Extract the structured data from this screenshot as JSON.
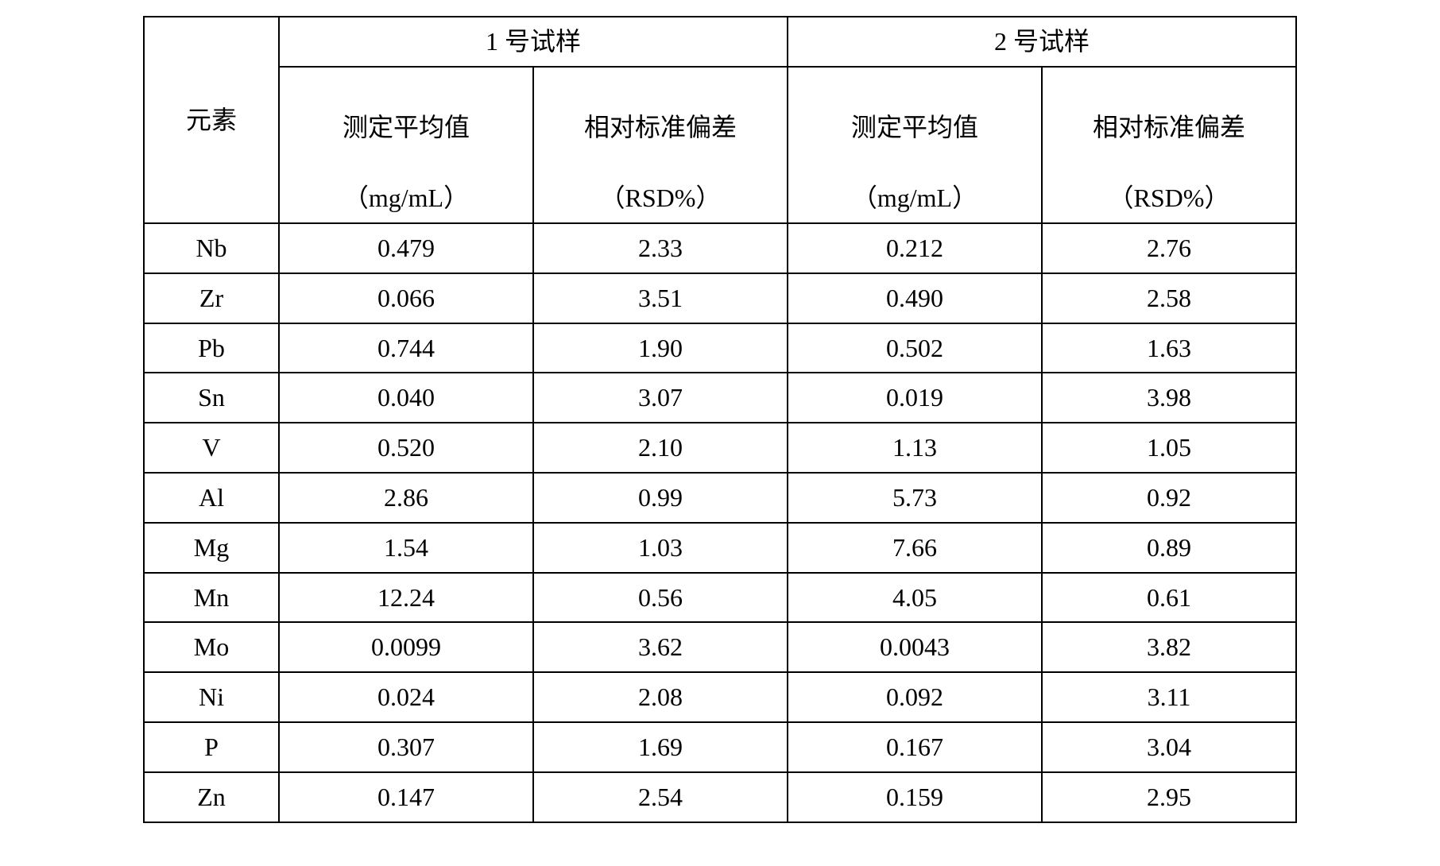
{
  "table": {
    "columns": {
      "element": "元素",
      "sample1": "1 号试样",
      "sample2": "2 号试样",
      "mean_line1": "测定平均值",
      "mean_line2": "（mg/mL）",
      "rsd_line1": "相对标准偏差",
      "rsd_line2": "（RSD%）"
    },
    "rows": [
      {
        "element": "Nb",
        "s1_mean": "0.479",
        "s1_rsd": "2.33",
        "s2_mean": "0.212",
        "s2_rsd": "2.76"
      },
      {
        "element": "Zr",
        "s1_mean": "0.066",
        "s1_rsd": "3.51",
        "s2_mean": "0.490",
        "s2_rsd": "2.58"
      },
      {
        "element": "Pb",
        "s1_mean": "0.744",
        "s1_rsd": "1.90",
        "s2_mean": "0.502",
        "s2_rsd": "1.63"
      },
      {
        "element": "Sn",
        "s1_mean": "0.040",
        "s1_rsd": "3.07",
        "s2_mean": "0.019",
        "s2_rsd": "3.98"
      },
      {
        "element": "V",
        "s1_mean": "0.520",
        "s1_rsd": "2.10",
        "s2_mean": "1.13",
        "s2_rsd": "1.05"
      },
      {
        "element": "Al",
        "s1_mean": "2.86",
        "s1_rsd": "0.99",
        "s2_mean": "5.73",
        "s2_rsd": "0.92"
      },
      {
        "element": "Mg",
        "s1_mean": "1.54",
        "s1_rsd": "1.03",
        "s2_mean": "7.66",
        "s2_rsd": "0.89"
      },
      {
        "element": "Mn",
        "s1_mean": "12.24",
        "s1_rsd": "0.56",
        "s2_mean": "4.05",
        "s2_rsd": "0.61"
      },
      {
        "element": "Mo",
        "s1_mean": "0.0099",
        "s1_rsd": "3.62",
        "s2_mean": "0.0043",
        "s2_rsd": "3.82"
      },
      {
        "element": "Ni",
        "s1_mean": "0.024",
        "s1_rsd": "2.08",
        "s2_mean": "0.092",
        "s2_rsd": "3.11"
      },
      {
        "element": "P",
        "s1_mean": "0.307",
        "s1_rsd": "1.69",
        "s2_mean": "0.167",
        "s2_rsd": "3.04"
      },
      {
        "element": "Zn",
        "s1_mean": "0.147",
        "s1_rsd": "2.54",
        "s2_mean": "0.159",
        "s2_rsd": "2.95"
      }
    ],
    "styling": {
      "border_color": "#000000",
      "border_width": 2,
      "background_color": "#ffffff",
      "text_color": "#000000",
      "font_size": 32,
      "font_family": "Times New Roman, SimSun, serif",
      "col_element_width": 170,
      "col_data_width": 320
    }
  }
}
